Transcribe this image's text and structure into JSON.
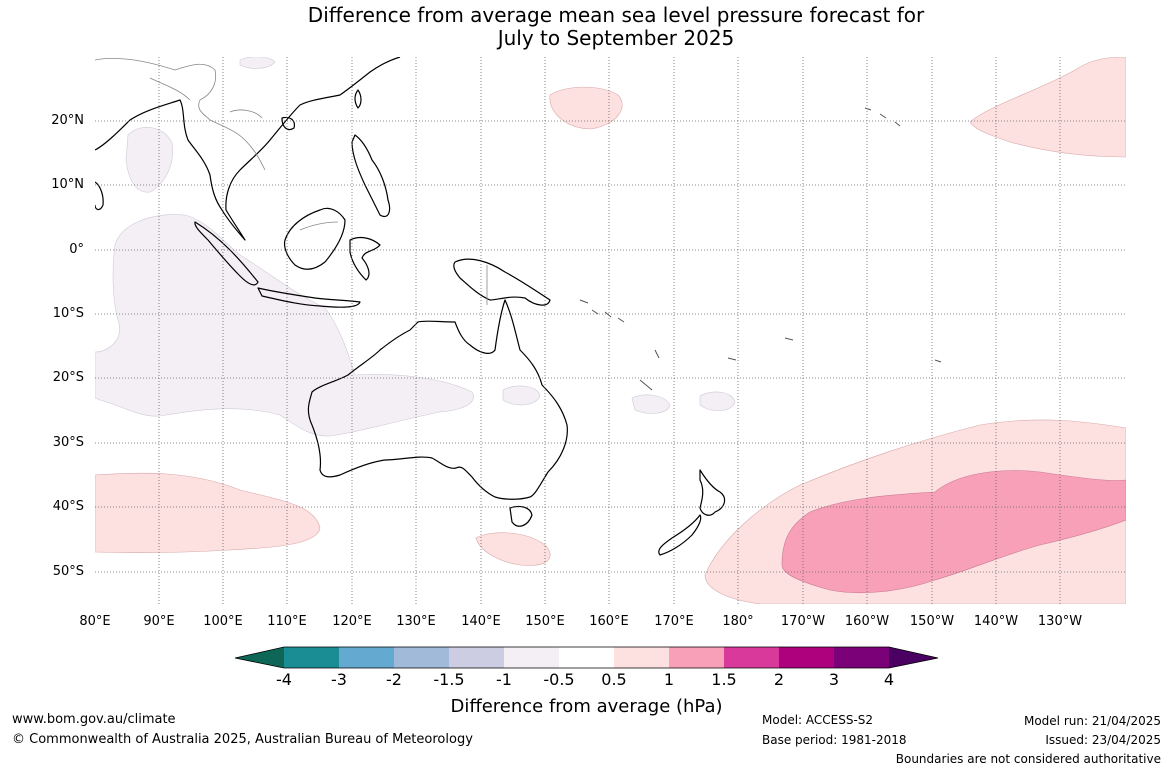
{
  "title": {
    "line1": "Difference from average mean sea level pressure forecast for",
    "line2": "July to September 2025"
  },
  "map": {
    "lat_labels": [
      "20°N",
      "10°N",
      "0°",
      "10°S",
      "20°S",
      "30°S",
      "40°S",
      "50°S"
    ],
    "lon_labels": [
      "80°E",
      "90°E",
      "100°E",
      "110°E",
      "120°E",
      "130°E",
      "140°E",
      "150°E",
      "160°E",
      "170°E",
      "180°",
      "170°W",
      "160°W",
      "150°W",
      "140°W",
      "130°W"
    ],
    "colors": {
      "gridline": "#666666",
      "coast": "#000000",
      "border": "#888888",
      "slightly_below": "#f3eff5",
      "slightly_above": "#fde0e0",
      "above": "#f7a0b8"
    }
  },
  "colorbar": {
    "ticks": [
      "-4",
      "-3",
      "-2",
      "-1.5",
      "-1",
      "-0.5",
      "0.5",
      "1",
      "1.5",
      "2",
      "3",
      "4"
    ],
    "colors": [
      "#0e6656",
      "#1a8d94",
      "#64a9d0",
      "#a2bad9",
      "#cccce2",
      "#f3eff5",
      "#ffffff",
      "#fde0e0",
      "#f7a0b8",
      "#d8399a",
      "#ae017e",
      "#7a0177",
      "#4b0161"
    ],
    "label": "Difference from average (hPa)"
  },
  "footer": {
    "url": "www.bom.gov.au/climate",
    "copyright": "© Commonwealth of Australia 2025, Australian Bureau of Meteorology",
    "model": "Model: ACCESS-S2",
    "base_period": "Base period: 1981-2018",
    "model_run": "Model run: 21/04/2025",
    "issued": "Issued: 23/04/2025",
    "disclaimer": "Boundaries are not considered authoritative"
  }
}
